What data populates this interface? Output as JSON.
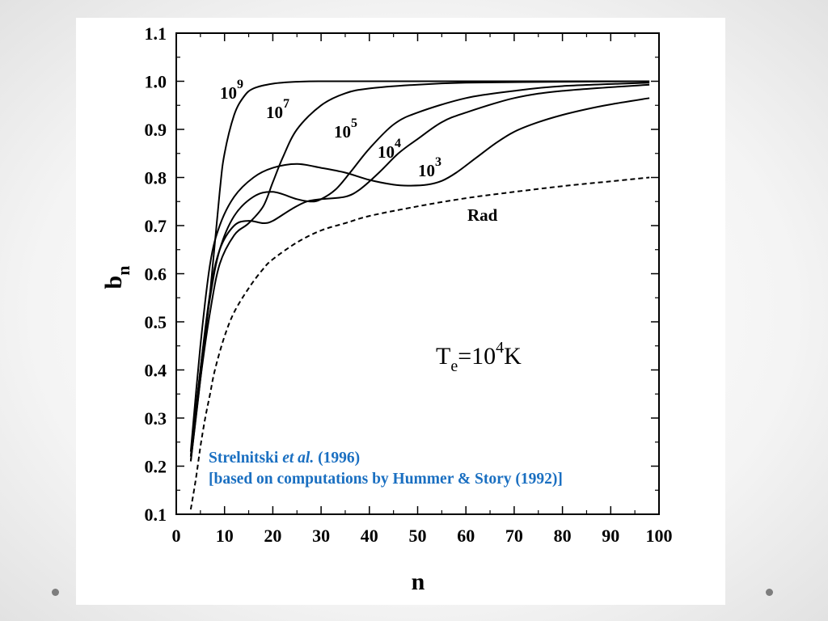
{
  "chart_data": {
    "type": "line",
    "title": "",
    "xlabel": "n",
    "ylabel": "b",
    "ylabel_subscript": "n",
    "xlim": [
      0,
      100
    ],
    "ylim": [
      0.1,
      1.1
    ],
    "x_ticks": [
      "0",
      "10",
      "20",
      "30",
      "40",
      "50",
      "60",
      "70",
      "80",
      "90",
      "100"
    ],
    "y_ticks": [
      "0.1",
      "0.2",
      "0.3",
      "0.4",
      "0.5",
      "0.6",
      "0.7",
      "0.8",
      "0.9",
      "1.0",
      "1.1"
    ],
    "grid": false,
    "annotation": {
      "base": "T",
      "sub": "e",
      "mid": "=10",
      "sup": "4",
      "tail": "K"
    },
    "series": [
      {
        "name": "10^9",
        "label": {
          "base": "10",
          "sup": "9"
        },
        "dashed": false,
        "x": [
          3,
          5,
          7,
          9,
          10,
          12,
          14,
          16,
          20,
          25,
          30,
          40,
          60,
          80,
          98
        ],
        "y": [
          0.21,
          0.38,
          0.56,
          0.77,
          0.85,
          0.93,
          0.968,
          0.985,
          0.995,
          0.999,
          1.0,
          1.0,
          1.0,
          1.0,
          1.0
        ]
      },
      {
        "name": "10^7",
        "label": {
          "base": "10",
          "sup": "7"
        },
        "dashed": false,
        "x": [
          3,
          5,
          7,
          9,
          12,
          15,
          18,
          20,
          22,
          25,
          30,
          35,
          40,
          50,
          60,
          80,
          98
        ],
        "y": [
          0.21,
          0.38,
          0.52,
          0.62,
          0.68,
          0.705,
          0.74,
          0.79,
          0.84,
          0.9,
          0.95,
          0.975,
          0.985,
          0.993,
          0.997,
          0.999,
          1.0
        ]
      },
      {
        "name": "10^5",
        "label": {
          "base": "10",
          "sup": "5"
        },
        "dashed": false,
        "x": [
          3,
          5,
          7,
          9,
          12,
          16,
          20,
          25,
          28,
          30,
          33,
          36,
          40,
          45,
          50,
          60,
          70,
          80,
          98
        ],
        "y": [
          0.22,
          0.4,
          0.55,
          0.65,
          0.72,
          0.76,
          0.77,
          0.755,
          0.75,
          0.755,
          0.775,
          0.81,
          0.86,
          0.91,
          0.935,
          0.965,
          0.98,
          0.99,
          0.997
        ]
      },
      {
        "name": "10^4",
        "label": {
          "base": "10",
          "sup": "4"
        },
        "dashed": false,
        "x": [
          3,
          5,
          7,
          9,
          12,
          15,
          18,
          20,
          24,
          27,
          30,
          35,
          38,
          42,
          46,
          50,
          55,
          60,
          70,
          80,
          98
        ],
        "y": [
          0.22,
          0.4,
          0.56,
          0.65,
          0.7,
          0.71,
          0.705,
          0.71,
          0.735,
          0.75,
          0.755,
          0.76,
          0.775,
          0.81,
          0.85,
          0.88,
          0.915,
          0.935,
          0.965,
          0.98,
          0.993
        ]
      },
      {
        "name": "10^3",
        "label": {
          "base": "10",
          "sup": "3"
        },
        "dashed": false,
        "x": [
          3,
          5,
          7,
          9,
          12,
          16,
          20,
          25,
          30,
          35,
          40,
          45,
          48,
          52,
          55,
          58,
          62,
          66,
          70,
          75,
          80,
          85,
          90,
          98
        ],
        "y": [
          0.23,
          0.45,
          0.62,
          0.7,
          0.76,
          0.8,
          0.82,
          0.828,
          0.82,
          0.81,
          0.795,
          0.785,
          0.783,
          0.785,
          0.793,
          0.81,
          0.84,
          0.87,
          0.895,
          0.915,
          0.93,
          0.942,
          0.952,
          0.965
        ]
      },
      {
        "name": "Rad",
        "label": {
          "base": "Rad",
          "sup": ""
        },
        "dashed": true,
        "x": [
          3,
          4,
          5,
          6,
          7,
          8,
          10,
          12,
          15,
          18,
          20,
          25,
          30,
          35,
          40,
          50,
          60,
          70,
          80,
          90,
          98
        ],
        "y": [
          0.11,
          0.17,
          0.24,
          0.3,
          0.35,
          0.4,
          0.47,
          0.52,
          0.57,
          0.61,
          0.63,
          0.665,
          0.69,
          0.705,
          0.72,
          0.74,
          0.757,
          0.77,
          0.782,
          0.792,
          0.8
        ]
      }
    ]
  },
  "citation": {
    "line1_author": "Strelnitski ",
    "line1_etal": "et al.",
    "line1_year": " (1996)",
    "line2": "[based on computations by Hummer & Story (1992)]"
  }
}
